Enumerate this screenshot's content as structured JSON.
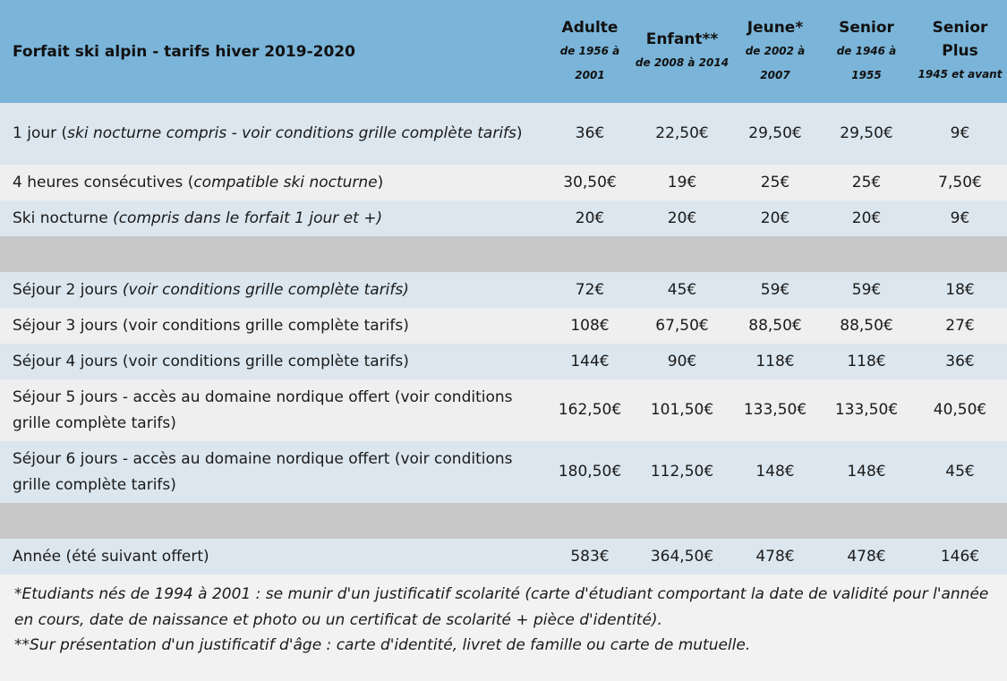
{
  "table": {
    "title": "Forfait ski alpin - tarifs hiver 2019-2020",
    "columns": [
      {
        "name": "Adulte",
        "sub": "de 1956 à 2001"
      },
      {
        "name": "Enfant**",
        "sub": "de 2008 à 2014"
      },
      {
        "name": "Jeune*",
        "sub": "de 2002 à 2007"
      },
      {
        "name": "Senior",
        "sub": "de 1946 à 1955"
      },
      {
        "name": "Senior Plus",
        "sub": "1945 et avant"
      }
    ],
    "rows": [
      {
        "label": "1 jour (",
        "label_em": "ski nocturne compris - voir conditions grille complète tarifs",
        "label_end": ")",
        "values": [
          "36€",
          "22,50€",
          "29,50€",
          "29,50€",
          "9€"
        ]
      },
      {
        "label": "4 heures consécutives (",
        "label_em": "compatible ski nocturne",
        "label_end": ")",
        "values": [
          "30,50€",
          "19€",
          "25€",
          "25€",
          "7,50€"
        ]
      },
      {
        "label": "Ski nocturne ",
        "label_em": "(compris dans le forfait 1 jour et +)",
        "label_end": "",
        "values": [
          "20€",
          "20€",
          "20€",
          "20€",
          "9€"
        ]
      },
      {
        "label": "Séjour 2 jours ",
        "label_em": "(voir conditions grille complète tarifs)",
        "label_end": "",
        "values": [
          "72€",
          "45€",
          "59€",
          "59€",
          "18€"
        ]
      },
      {
        "label": "Séjour 3 jours (voir conditions grille complète tarifs)",
        "values": [
          "108€",
          "67,50€",
          "88,50€",
          "88,50€",
          "27€"
        ]
      },
      {
        "label": "Séjour 4 jours (voir conditions grille complète tarifs)",
        "values": [
          "144€",
          "90€",
          "118€",
          "118€",
          "36€"
        ]
      },
      {
        "label": "Séjour 5 jours - accès au domaine nordique offert (voir conditions grille complète tarifs)",
        "values": [
          "162,50€",
          "101,50€",
          "133,50€",
          "133,50€",
          "40,50€"
        ]
      },
      {
        "label": "Séjour 6 jours - accès au domaine nordique offert (voir conditions grille complète tarifs)",
        "values": [
          "180,50€",
          "112,50€",
          "148€",
          "148€",
          "45€"
        ]
      },
      {
        "label": "Année (été suivant offert)",
        "values": [
          "583€",
          "364,50€",
          "478€",
          "478€",
          "146€"
        ]
      }
    ]
  },
  "footnotes": [
    "*Etudiants nés de 1994 à 2001 : se munir d'un justificatif scolarité (carte d'étudiant comportant la date de validité pour l'année en cours, date de naissance et photo ou un certificat de scolarité + pièce d'identité).",
    "**Sur présentation d'un justificatif d'âge : carte d'identité, livret de famille ou carte de mutuelle."
  ],
  "colors": {
    "header_bg": "#7ab4d8",
    "row_blue": "#dbe6ee",
    "row_gray": "#efefef",
    "separator": "#c8c8c8"
  }
}
